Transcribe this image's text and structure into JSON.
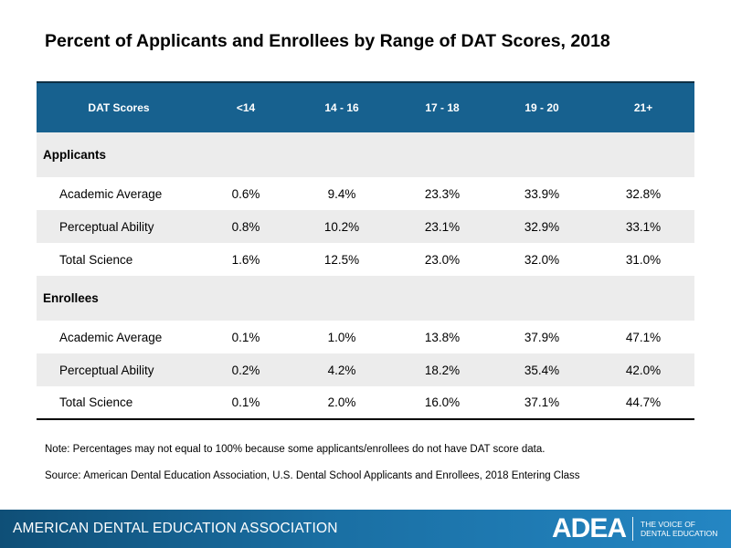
{
  "title": "Percent of Applicants and Enrollees by Range of DAT Scores, 2018",
  "chart_data": {
    "type": "table",
    "columns": [
      "DAT Scores",
      "<14",
      "14 - 16",
      "17 - 18",
      "19 - 20",
      "21+"
    ],
    "sections": [
      {
        "name": "Applicants",
        "rows": [
          {
            "label": "Academic Average",
            "values": [
              "0.6%",
              "9.4%",
              "23.3%",
              "33.9%",
              "32.8%"
            ]
          },
          {
            "label": "Perceptual Ability",
            "values": [
              "0.8%",
              "10.2%",
              "23.1%",
              "32.9%",
              "33.1%"
            ]
          },
          {
            "label": "Total Science",
            "values": [
              "1.6%",
              "12.5%",
              "23.0%",
              "32.0%",
              "31.0%"
            ]
          }
        ]
      },
      {
        "name": "Enrollees",
        "rows": [
          {
            "label": "Academic Average",
            "values": [
              "0.1%",
              "1.0%",
              "13.8%",
              "37.9%",
              "47.1%"
            ]
          },
          {
            "label": "Perceptual Ability",
            "values": [
              "0.2%",
              "4.2%",
              "18.2%",
              "35.4%",
              "42.0%"
            ]
          },
          {
            "label": "Total Science",
            "values": [
              "0.1%",
              "2.0%",
              "16.0%",
              "37.1%",
              "44.7%"
            ]
          }
        ]
      }
    ]
  },
  "notes": {
    "note": "Note: Percentages may not equal to 100% because some applicants/enrollees do not have DAT score data.",
    "source": "Source: American Dental Education Association, U.S. Dental School Applicants and Enrollees, 2018 Entering Class"
  },
  "footer": {
    "organization": "AMERICAN DENTAL EDUCATION ASSOCIATION",
    "logo_text": "ADEA",
    "tagline_1": "THE VOICE OF",
    "tagline_2": "DENTAL EDUCATION"
  },
  "colors": {
    "header_bg": "#17618f",
    "stripe_bg": "#ececec",
    "footer_bg": "#1a6fa3"
  }
}
